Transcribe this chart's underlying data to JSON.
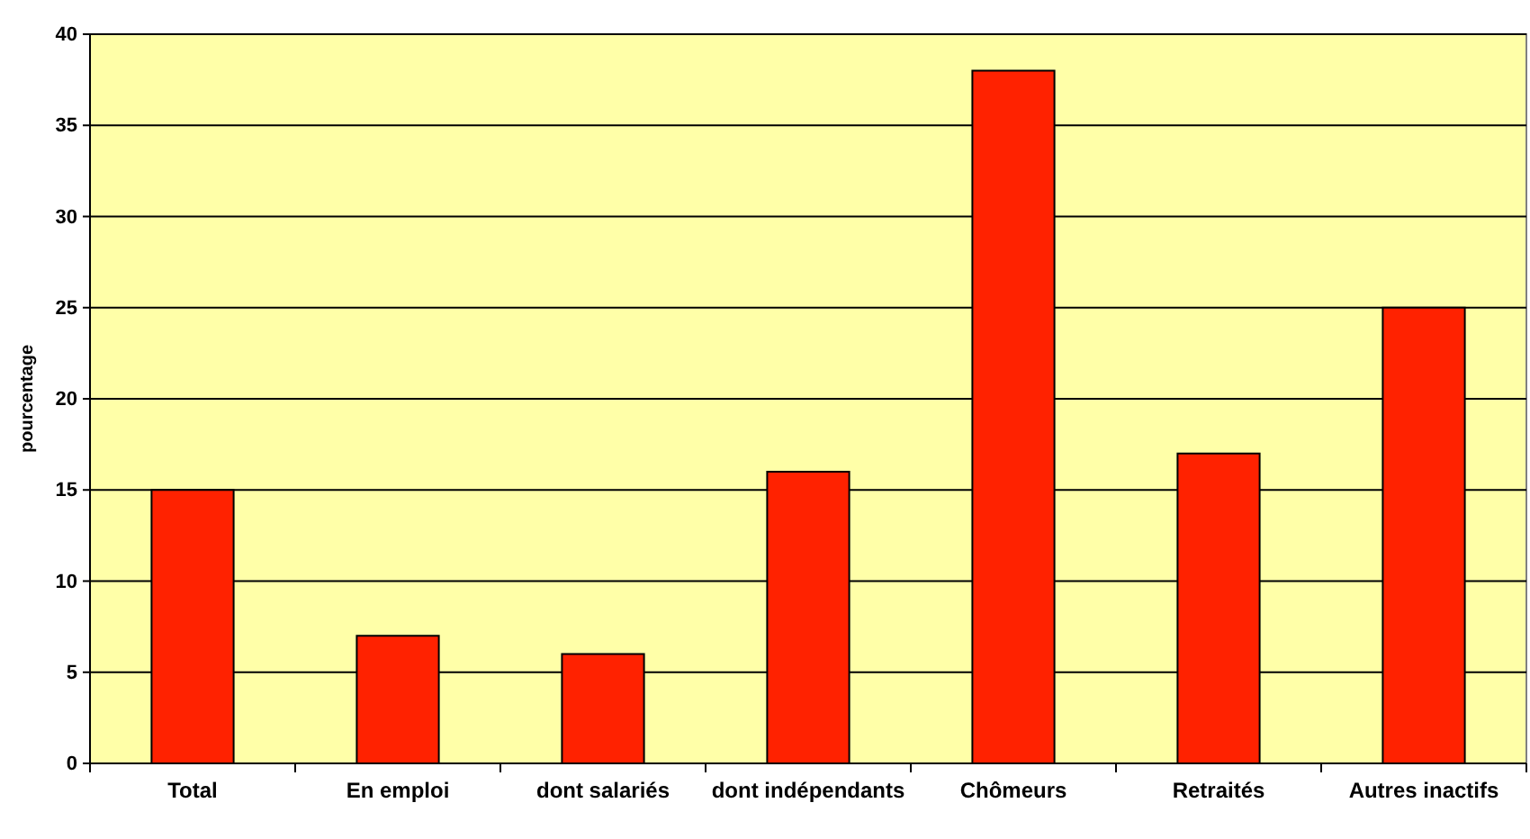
{
  "chart_data": {
    "type": "bar",
    "ylabel": "pourcentage",
    "categories": [
      "Total",
      "En emploi",
      "dont salariés",
      "dont indépendants",
      "Chômeurs",
      "Retraités",
      "Autres inactifs"
    ],
    "values": [
      15,
      7,
      6,
      16,
      38,
      17,
      25
    ],
    "color": "#ff2200",
    "ylim": [
      0,
      40
    ],
    "yticks": [
      0,
      5,
      10,
      15,
      20,
      25,
      30,
      35,
      40
    ],
    "grid": "y"
  }
}
